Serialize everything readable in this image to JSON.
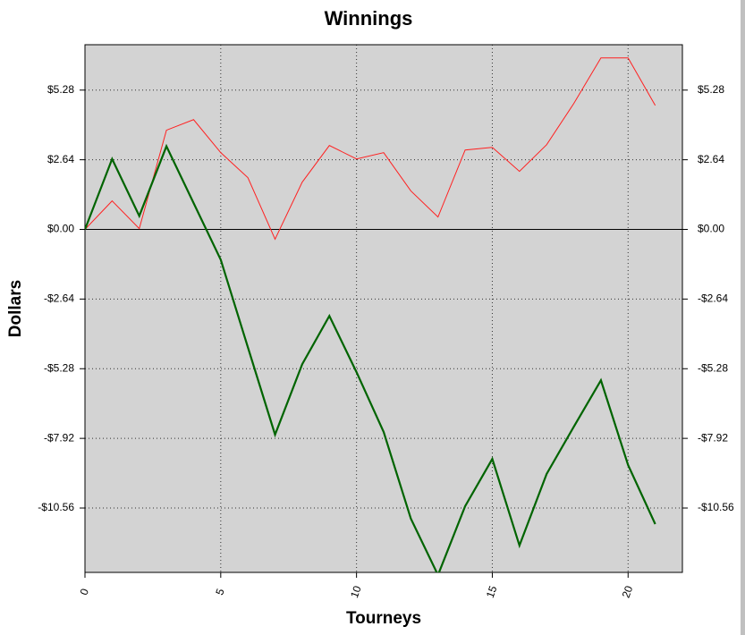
{
  "chart_data": {
    "type": "line",
    "title": "Winnings",
    "x_label": "Tourneys",
    "y_label": "Dollars",
    "x": [
      0,
      1,
      2,
      3,
      4,
      5,
      6,
      7,
      8,
      9,
      10,
      11,
      12,
      13,
      14,
      15,
      16,
      17,
      18,
      19,
      20,
      21
    ],
    "series": [
      {
        "color": "#ff2020",
        "values": [
          0,
          1.08,
          0.03,
          3.76,
          4.16,
          2.91,
          1.96,
          -0.37,
          1.79,
          3.18,
          2.67,
          2.91,
          1.46,
          0.47,
          3.01,
          3.11,
          2.2,
          3.21,
          4.77,
          6.5,
          6.5,
          4.7
        ]
      },
      {
        "color": "#006400",
        "values": [
          0,
          2.67,
          0.51,
          3.15,
          1.0,
          -1.15,
          -4.47,
          -7.78,
          -5.11,
          -3.28,
          -5.41,
          -7.68,
          -10.96,
          -13.1,
          -10.49,
          -8.7,
          -11.98,
          -9.27,
          -7.48,
          -5.72,
          -8.93,
          -11.17
        ]
      }
    ],
    "xlim": [
      0,
      22
    ],
    "xticks": [
      0,
      5,
      10,
      15,
      20
    ],
    "ylim": [
      -13,
      7
    ],
    "yticks": [
      {
        "value": -10.56,
        "label": "-$10.56"
      },
      {
        "value": -7.92,
        "label": "-$7.92"
      },
      {
        "value": -5.28,
        "label": "-$5.28"
      },
      {
        "value": -2.64,
        "label": "-$2.64"
      },
      {
        "value": 0,
        "label": "$0.00"
      },
      {
        "value": 2.64,
        "label": "$2.64"
      },
      {
        "value": 5.28,
        "label": "$5.28"
      }
    ],
    "grid": true
  }
}
